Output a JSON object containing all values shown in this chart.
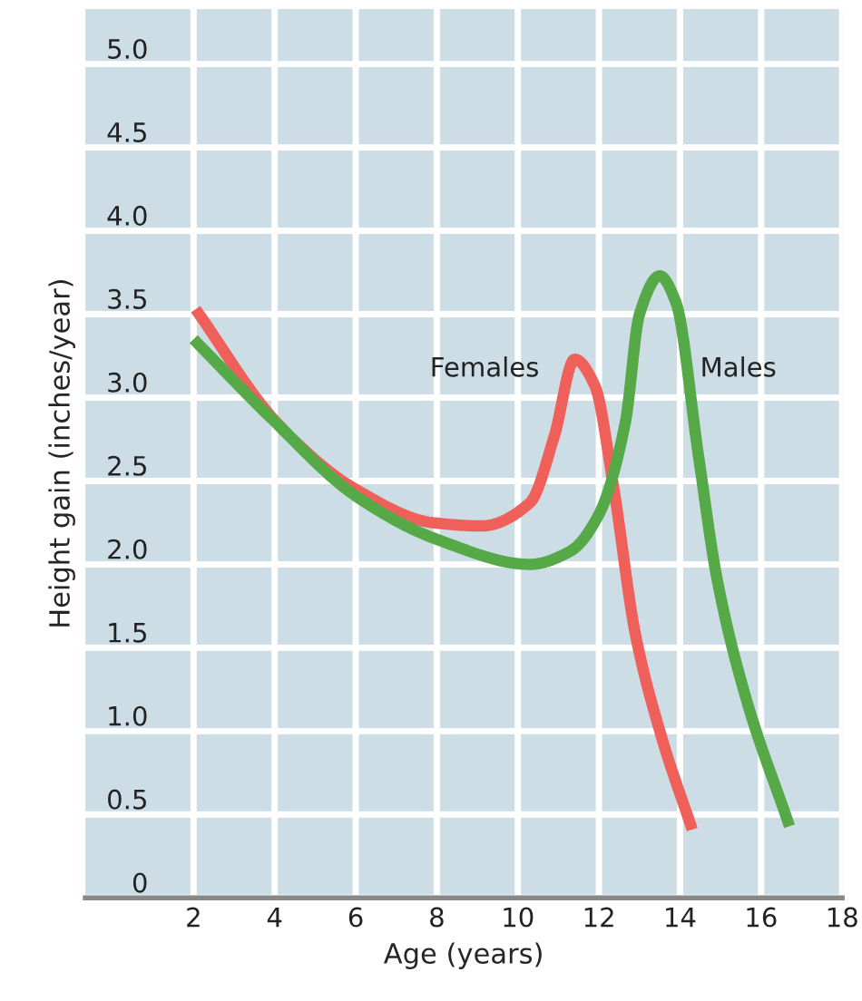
{
  "chart_data": {
    "type": "line",
    "xlabel": "Age (years)",
    "ylabel": "Height gain (inches/year)",
    "xlim": [
      -0.67,
      18
    ],
    "xticks": [
      2,
      4,
      6,
      8,
      10,
      12,
      14,
      16,
      18
    ],
    "ylim": [
      0,
      5.33
    ],
    "yticks": [
      0,
      0.5,
      {
        "value": 1,
        "label": "1.0"
      },
      1.5,
      {
        "value": 2,
        "label": "2.0"
      },
      2.5,
      {
        "value": 3,
        "label": "3.0"
      },
      3.5,
      {
        "value": 4,
        "label": "4.0"
      },
      4.5,
      {
        "value": 5,
        "label": "5.0"
      }
    ],
    "grid": true,
    "legend": false,
    "marker": "none",
    "line_style": "solid",
    "series": [
      {
        "color": "#f0605a",
        "x": [
          2.05,
          4.05,
          6.0,
          7.9,
          9.1,
          10.3,
          10.9,
          11.4,
          11.9,
          12.35,
          12.9,
          13.55,
          14.3
        ],
        "values": [
          3.53,
          2.85,
          2.45,
          2.25,
          2.23,
          2.37,
          2.77,
          3.23,
          3.07,
          2.48,
          1.58,
          0.96,
          0.41
        ]
      },
      {
        "color": "#55a946",
        "x": [
          2.0,
          3.9,
          6.0,
          8.0,
          10.3,
          11.3,
          12.0,
          12.65,
          13.0,
          13.5,
          13.9,
          14.45,
          14.9,
          15.6,
          16.7
        ],
        "values": [
          3.35,
          2.88,
          2.41,
          2.15,
          2.0,
          2.08,
          2.3,
          2.85,
          3.5,
          3.73,
          3.57,
          2.66,
          1.93,
          1.22,
          0.43
        ]
      }
    ],
    "annotations": [
      "Females",
      "Males"
    ]
  }
}
